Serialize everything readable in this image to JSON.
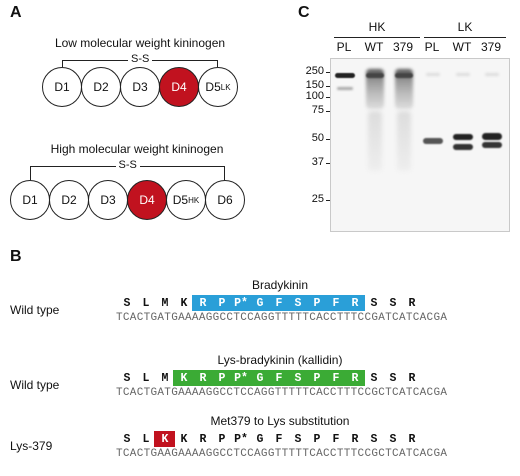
{
  "panels": {
    "a": "A",
    "b": "B",
    "c": "C"
  },
  "lmw": {
    "title": "Low molecular weight kininogen",
    "bond": "S-S",
    "domains": [
      {
        "label": "D1",
        "sub": ""
      },
      {
        "label": "D2",
        "sub": ""
      },
      {
        "label": "D3",
        "sub": ""
      },
      {
        "label": "D4",
        "sub": "",
        "highlight": true
      },
      {
        "label": "D5",
        "sub": "LK"
      }
    ]
  },
  "hmw": {
    "title": "High molecular weight kininogen",
    "bond": "S-S",
    "domains": [
      {
        "label": "D1",
        "sub": ""
      },
      {
        "label": "D2",
        "sub": ""
      },
      {
        "label": "D3",
        "sub": ""
      },
      {
        "label": "D4",
        "sub": "",
        "highlight": true
      },
      {
        "label": "D5",
        "sub": "HK"
      },
      {
        "label": "D6",
        "sub": ""
      }
    ]
  },
  "gel": {
    "groups": [
      "HK",
      "LK"
    ],
    "lanes": [
      "PL",
      "WT",
      "379",
      "PL",
      "WT",
      "379"
    ],
    "markers": [
      "250",
      "150",
      "100",
      "75",
      "50",
      "37",
      "25"
    ]
  },
  "sequences": [
    {
      "title": "Bradykinin",
      "label": "Wild type",
      "residues": [
        "S",
        "L",
        "M",
        "K",
        "R",
        "P",
        "P*",
        "G",
        "F",
        "S",
        "P",
        "F",
        "R",
        "S",
        "S",
        "R"
      ],
      "box": {
        "start": 4,
        "end": 12,
        "color": "#2a9fd8"
      },
      "dna": "TCACTGATGAAAAGGCCTCCAGGTTTTTCACCTTTCCGATCATCACGA"
    },
    {
      "title": "Lys-bradykinin (kallidin)",
      "label": "Wild type",
      "residues": [
        "S",
        "L",
        "M",
        "K",
        "R",
        "P",
        "P*",
        "G",
        "F",
        "S",
        "P",
        "F",
        "R",
        "S",
        "S",
        "R"
      ],
      "box": {
        "start": 3,
        "end": 12,
        "color": "#3bab35"
      },
      "dna": "TCACTGATGAAAAGGCCTCCAGGTTTTTCACCTTTCCGCTCATCACGA"
    },
    {
      "title": "Met379 to Lys substitution",
      "label": "Lys-379",
      "residues": [
        "S",
        "L",
        "K",
        "K",
        "R",
        "P",
        "P*",
        "G",
        "F",
        "S",
        "P",
        "F",
        "R",
        "S",
        "S",
        "R"
      ],
      "box": {
        "start": 2,
        "end": 2,
        "color": "#c1121f"
      },
      "dna": "TCACTGAAGAAAAGGCCTCCAGGTTTTTCACCTTTCCGCTCATCACGA"
    }
  ]
}
